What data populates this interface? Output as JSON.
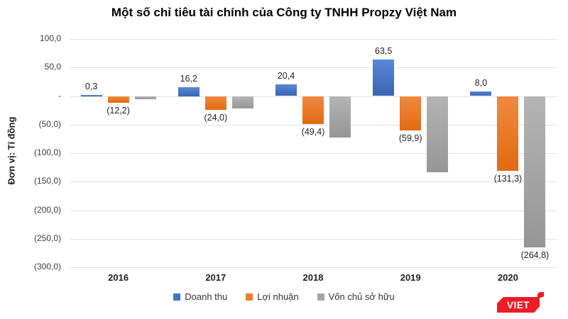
{
  "title": "Một số chỉ tiêu tài chính của Công ty TNHH Propzy Việt Nam",
  "y_axis_title": "Đơn vị: Tỉ đồng",
  "logo": {
    "text": "VIET",
    "color": "#EE1C25"
  },
  "colors": {
    "doanh_thu": "#4472C4",
    "loi_nhuan": "#ED7D31",
    "von_chu_so_huu": "#A5A5A5",
    "gridline": "#dce1ea"
  },
  "chart_data": {
    "type": "bar",
    "title": "Một số chỉ tiêu tài chính của Công ty TNHH Propzy Việt Nam",
    "ylabel": "Đơn vị: Tỉ đồng",
    "xlabel": "",
    "grid": true,
    "legend_position": "bottom",
    "ylim": [
      -300,
      100
    ],
    "categories": [
      "2016",
      "2017",
      "2018",
      "2019",
      "2020"
    ],
    "y_ticks": [
      {
        "value": 100,
        "label": "100,0"
      },
      {
        "value": 50,
        "label": "50,0"
      },
      {
        "value": 0,
        "label": "-"
      },
      {
        "value": -50,
        "label": "(50,0)"
      },
      {
        "value": -100,
        "label": "(100,0)"
      },
      {
        "value": -150,
        "label": "(150,0)"
      },
      {
        "value": -200,
        "label": "(200,0)"
      },
      {
        "value": -250,
        "label": "(250,0)"
      },
      {
        "value": -300,
        "label": "(300,0)"
      }
    ],
    "series": [
      {
        "name": "Doanh thu",
        "color": "#4472C4",
        "color_light": "#5787D8",
        "color_dark": "#3A66B2",
        "values": [
          0.3,
          16.2,
          20.4,
          63.5,
          8.0
        ],
        "labels": [
          "0,3",
          "16,2",
          "20,4",
          "63,5",
          "8,0"
        ]
      },
      {
        "name": "Lợi nhuận",
        "color": "#ED7D31",
        "color_light": "#F08940",
        "color_dark": "#E26A12",
        "values": [
          -12.2,
          -24.0,
          -49.4,
          -59.9,
          -131.3
        ],
        "labels": [
          "(12,2)",
          "(24,0)",
          "(49,4)",
          "(59,9)",
          "(131,3)"
        ]
      },
      {
        "name": "Vốn chủ sở hữu",
        "color": "#A5A5A5",
        "color_light": "#B4B4B4",
        "color_dark": "#969696",
        "values": [
          -6,
          -22,
          -72,
          -134,
          -264.8
        ],
        "labels": [
          null,
          null,
          null,
          null,
          "(264,8)"
        ]
      }
    ]
  }
}
